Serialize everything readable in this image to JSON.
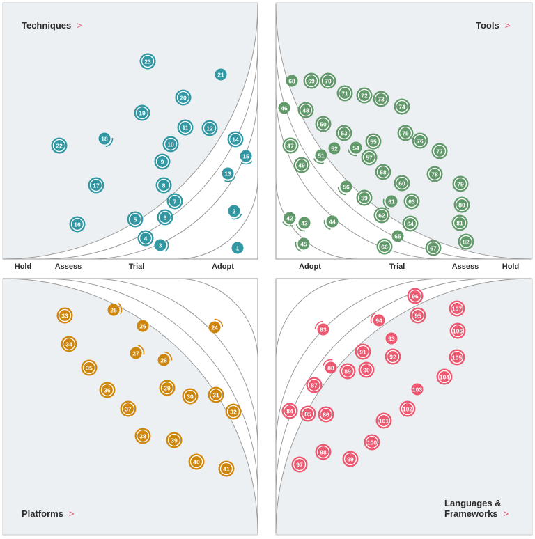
{
  "rings": [
    "Adopt",
    "Trial",
    "Assess",
    "Hold"
  ],
  "ring_labels": {
    "left": [
      "Hold",
      "Assess",
      "Trial",
      "Adopt"
    ],
    "right": [
      "Adopt",
      "Trial",
      "Assess",
      "Hold"
    ]
  },
  "chevron": ">",
  "legend_statuses": [
    "new",
    "moved-in",
    "no-change"
  ],
  "quadrants": [
    {
      "key": "techniques",
      "name": "Techniques",
      "color": "#3198a3",
      "blips": [
        {
          "n": 1,
          "ring": "Adopt",
          "status": "no-change"
        },
        {
          "n": 2,
          "ring": "Adopt",
          "status": "moved-in"
        },
        {
          "n": 3,
          "ring": "Trial",
          "status": "moved-in"
        },
        {
          "n": 4,
          "ring": "Trial",
          "status": "new"
        },
        {
          "n": 5,
          "ring": "Trial",
          "status": "new"
        },
        {
          "n": 6,
          "ring": "Trial",
          "status": "new"
        },
        {
          "n": 7,
          "ring": "Trial",
          "status": "new"
        },
        {
          "n": 8,
          "ring": "Trial",
          "status": "new"
        },
        {
          "n": 9,
          "ring": "Trial",
          "status": "new"
        },
        {
          "n": 10,
          "ring": "Trial",
          "status": "new"
        },
        {
          "n": 11,
          "ring": "Trial",
          "status": "new"
        },
        {
          "n": 12,
          "ring": "Trial",
          "status": "new"
        },
        {
          "n": 13,
          "ring": "Trial",
          "status": "moved-in"
        },
        {
          "n": 14,
          "ring": "Trial",
          "status": "new"
        },
        {
          "n": 15,
          "ring": "Trial",
          "status": "moved-in"
        },
        {
          "n": 16,
          "ring": "Assess",
          "status": "new"
        },
        {
          "n": 17,
          "ring": "Assess",
          "status": "new"
        },
        {
          "n": 18,
          "ring": "Assess",
          "status": "moved-in"
        },
        {
          "n": 19,
          "ring": "Assess",
          "status": "new"
        },
        {
          "n": 20,
          "ring": "Assess",
          "status": "new"
        },
        {
          "n": 21,
          "ring": "Assess",
          "status": "no-change"
        },
        {
          "n": 22,
          "ring": "Hold",
          "status": "new"
        },
        {
          "n": 23,
          "ring": "Hold",
          "status": "new"
        }
      ]
    },
    {
      "key": "tools",
      "name": "Tools",
      "color": "#62996b",
      "blips": [
        {
          "n": 42,
          "ring": "Adopt",
          "status": "moved-in"
        },
        {
          "n": 43,
          "ring": "Adopt",
          "status": "moved-in"
        },
        {
          "n": 44,
          "ring": "Adopt",
          "status": "moved-in"
        },
        {
          "n": 45,
          "ring": "Adopt",
          "status": "moved-in"
        },
        {
          "n": 46,
          "ring": "Trial",
          "status": "no-change"
        },
        {
          "n": 47,
          "ring": "Trial",
          "status": "new"
        },
        {
          "n": 48,
          "ring": "Trial",
          "status": "new"
        },
        {
          "n": 49,
          "ring": "Trial",
          "status": "new"
        },
        {
          "n": 50,
          "ring": "Trial",
          "status": "new"
        },
        {
          "n": 51,
          "ring": "Trial",
          "status": "moved-in"
        },
        {
          "n": 52,
          "ring": "Trial",
          "status": "no-change"
        },
        {
          "n": 53,
          "ring": "Trial",
          "status": "new"
        },
        {
          "n": 54,
          "ring": "Trial",
          "status": "moved-in"
        },
        {
          "n": 55,
          "ring": "Trial",
          "status": "new"
        },
        {
          "n": 56,
          "ring": "Trial",
          "status": "moved-in"
        },
        {
          "n": 57,
          "ring": "Trial",
          "status": "new"
        },
        {
          "n": 58,
          "ring": "Trial",
          "status": "new"
        },
        {
          "n": 59,
          "ring": "Trial",
          "status": "new"
        },
        {
          "n": 60,
          "ring": "Trial",
          "status": "new"
        },
        {
          "n": 61,
          "ring": "Trial",
          "status": "moved-in"
        },
        {
          "n": 62,
          "ring": "Trial",
          "status": "new"
        },
        {
          "n": 63,
          "ring": "Trial",
          "status": "new"
        },
        {
          "n": 64,
          "ring": "Trial",
          "status": "new"
        },
        {
          "n": 65,
          "ring": "Trial",
          "status": "no-change"
        },
        {
          "n": 66,
          "ring": "Trial",
          "status": "new"
        },
        {
          "n": 67,
          "ring": "Trial",
          "status": "new"
        },
        {
          "n": 68,
          "ring": "Assess",
          "status": "no-change"
        },
        {
          "n": 69,
          "ring": "Assess",
          "status": "new"
        },
        {
          "n": 70,
          "ring": "Assess",
          "status": "new"
        },
        {
          "n": 71,
          "ring": "Assess",
          "status": "new"
        },
        {
          "n": 72,
          "ring": "Assess",
          "status": "new"
        },
        {
          "n": 73,
          "ring": "Assess",
          "status": "new"
        },
        {
          "n": 74,
          "ring": "Assess",
          "status": "new"
        },
        {
          "n": 75,
          "ring": "Assess",
          "status": "new"
        },
        {
          "n": 76,
          "ring": "Assess",
          "status": "new"
        },
        {
          "n": 77,
          "ring": "Assess",
          "status": "new"
        },
        {
          "n": 78,
          "ring": "Assess",
          "status": "new"
        },
        {
          "n": 79,
          "ring": "Assess",
          "status": "new"
        },
        {
          "n": 80,
          "ring": "Assess",
          "status": "new"
        },
        {
          "n": 81,
          "ring": "Assess",
          "status": "new"
        },
        {
          "n": 82,
          "ring": "Assess",
          "status": "new"
        }
      ]
    },
    {
      "key": "platforms",
      "name": "Platforms",
      "color": "#cf860c",
      "blips": [
        {
          "n": 24,
          "ring": "Adopt",
          "status": "moved-in"
        },
        {
          "n": 25,
          "ring": "Trial",
          "status": "moved-in"
        },
        {
          "n": 26,
          "ring": "Trial",
          "status": "no-change"
        },
        {
          "n": 27,
          "ring": "Trial",
          "status": "moved-in"
        },
        {
          "n": 28,
          "ring": "Trial",
          "status": "moved-in"
        },
        {
          "n": 29,
          "ring": "Trial",
          "status": "new"
        },
        {
          "n": 30,
          "ring": "Trial",
          "status": "new"
        },
        {
          "n": 31,
          "ring": "Trial",
          "status": "new"
        },
        {
          "n": 32,
          "ring": "Trial",
          "status": "new"
        },
        {
          "n": 33,
          "ring": "Assess",
          "status": "new"
        },
        {
          "n": 34,
          "ring": "Assess",
          "status": "new"
        },
        {
          "n": 35,
          "ring": "Assess",
          "status": "new"
        },
        {
          "n": 36,
          "ring": "Assess",
          "status": "new"
        },
        {
          "n": 37,
          "ring": "Assess",
          "status": "new"
        },
        {
          "n": 38,
          "ring": "Assess",
          "status": "new"
        },
        {
          "n": 39,
          "ring": "Assess",
          "status": "new"
        },
        {
          "n": 40,
          "ring": "Assess",
          "status": "new"
        },
        {
          "n": 41,
          "ring": "Assess",
          "status": "new"
        }
      ]
    },
    {
      "key": "languages",
      "name": "Languages & Frameworks",
      "name_lines": [
        "Languages &",
        "Frameworks"
      ],
      "color": "#ec5870",
      "blips": [
        {
          "n": 83,
          "ring": "Adopt",
          "status": "moved-in"
        },
        {
          "n": 84,
          "ring": "Trial",
          "status": "new"
        },
        {
          "n": 85,
          "ring": "Trial",
          "status": "new"
        },
        {
          "n": 86,
          "ring": "Trial",
          "status": "new"
        },
        {
          "n": 87,
          "ring": "Trial",
          "status": "new"
        },
        {
          "n": 88,
          "ring": "Trial",
          "status": "moved-in"
        },
        {
          "n": 89,
          "ring": "Trial",
          "status": "new"
        },
        {
          "n": 90,
          "ring": "Trial",
          "status": "new"
        },
        {
          "n": 91,
          "ring": "Trial",
          "status": "new"
        },
        {
          "n": 92,
          "ring": "Trial",
          "status": "new"
        },
        {
          "n": 93,
          "ring": "Trial",
          "status": "no-change"
        },
        {
          "n": 94,
          "ring": "Trial",
          "status": "moved-in"
        },
        {
          "n": 95,
          "ring": "Trial",
          "status": "new"
        },
        {
          "n": 96,
          "ring": "Trial",
          "status": "new"
        },
        {
          "n": 97,
          "ring": "Assess",
          "status": "new"
        },
        {
          "n": 98,
          "ring": "Assess",
          "status": "new"
        },
        {
          "n": 99,
          "ring": "Assess",
          "status": "new"
        },
        {
          "n": 100,
          "ring": "Assess",
          "status": "new"
        },
        {
          "n": 101,
          "ring": "Assess",
          "status": "new"
        },
        {
          "n": 102,
          "ring": "Assess",
          "status": "new"
        },
        {
          "n": 103,
          "ring": "Assess",
          "status": "no-change"
        },
        {
          "n": 104,
          "ring": "Assess",
          "status": "new"
        },
        {
          "n": 105,
          "ring": "Assess",
          "status": "new"
        },
        {
          "n": 106,
          "ring": "Assess",
          "status": "new"
        },
        {
          "n": 107,
          "ring": "Assess",
          "status": "new"
        }
      ]
    }
  ]
}
